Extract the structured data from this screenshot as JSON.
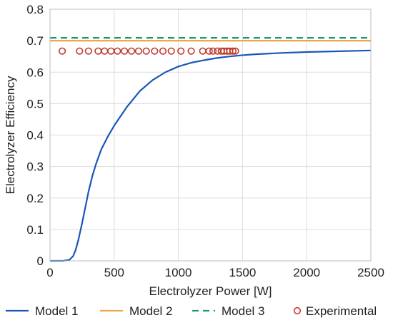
{
  "chart_data": {
    "type": "line",
    "title": "",
    "xlabel": "Electrolyzer Power [W]",
    "ylabel": "Electrolyzer Efficiency",
    "xlim": [
      0,
      2500
    ],
    "ylim": [
      0,
      0.8
    ],
    "x_ticks": [
      0,
      500,
      1000,
      1500,
      2000,
      2500
    ],
    "y_ticks": [
      0,
      0.1,
      0.2,
      0.3,
      0.4,
      0.5,
      0.6,
      0.7,
      0.8
    ],
    "x_tick_labels": [
      "0",
      "500",
      "1000",
      "1500",
      "2000",
      "2500"
    ],
    "y_tick_labels": [
      "0",
      "0.1",
      "0.2",
      "0.3",
      "0.4",
      "0.5",
      "0.6",
      "0.7",
      "0.8"
    ],
    "grid": true,
    "legend_position": "bottom",
    "series": [
      {
        "name": "Model 1",
        "style": "solid",
        "color": "#1a56b8",
        "x": [
          0,
          100,
          150,
          180,
          200,
          220,
          250,
          280,
          300,
          330,
          360,
          400,
          450,
          500,
          550,
          600,
          650,
          700,
          800,
          900,
          1000,
          1100,
          1200,
          1300,
          1400,
          1500,
          1600,
          1800,
          2000,
          2200,
          2500
        ],
        "y": [
          0,
          0,
          0.003,
          0.015,
          0.035,
          0.065,
          0.12,
          0.18,
          0.22,
          0.27,
          0.31,
          0.355,
          0.395,
          0.43,
          0.46,
          0.49,
          0.515,
          0.54,
          0.575,
          0.6,
          0.618,
          0.63,
          0.638,
          0.645,
          0.65,
          0.654,
          0.657,
          0.661,
          0.664,
          0.666,
          0.669
        ]
      },
      {
        "name": "Model 2",
        "style": "solid",
        "color": "#f0a64a",
        "x": [
          0,
          2500
        ],
        "y": [
          0.7,
          0.7
        ]
      },
      {
        "name": "Model 3",
        "style": "dashed",
        "color": "#1e9a67",
        "x": [
          0,
          2500
        ],
        "y": [
          0.709,
          0.709
        ]
      },
      {
        "name": "Experimental",
        "style": "marker",
        "color": "#c0392b",
        "x": [
          95,
          230,
          300,
          375,
          425,
          475,
          525,
          580,
          635,
          690,
          750,
          815,
          880,
          945,
          1020,
          1100,
          1190,
          1240,
          1270,
          1305,
          1335,
          1355,
          1380,
          1400,
          1425,
          1445
        ],
        "y": [
          0.667,
          0.667,
          0.667,
          0.667,
          0.667,
          0.667,
          0.667,
          0.667,
          0.667,
          0.667,
          0.667,
          0.667,
          0.667,
          0.667,
          0.667,
          0.667,
          0.667,
          0.667,
          0.667,
          0.667,
          0.667,
          0.667,
          0.667,
          0.667,
          0.667,
          0.667
        ]
      }
    ]
  }
}
